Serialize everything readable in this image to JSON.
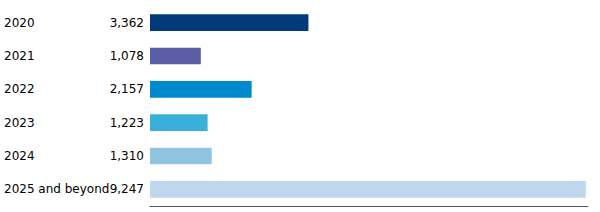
{
  "chart_data": {
    "type": "bar",
    "orientation": "horizontal",
    "categories": [
      "2020",
      "2021",
      "2022",
      "2023",
      "2024",
      "2025 and beyond"
    ],
    "values": [
      3362,
      1078,
      2157,
      1223,
      1310,
      9247
    ],
    "value_labels": [
      "3,362",
      "1,078",
      "2,157",
      "1,223",
      "1,310",
      "9,247"
    ],
    "colors": [
      "#003A78",
      "#5B5EA6",
      "#0089CC",
      "#3AAFD9",
      "#91C4E0",
      "#BDD7EE"
    ],
    "xlim": [
      0,
      9293.235
    ],
    "data_labels": true,
    "tick_labels": "y",
    "grid": false
  }
}
